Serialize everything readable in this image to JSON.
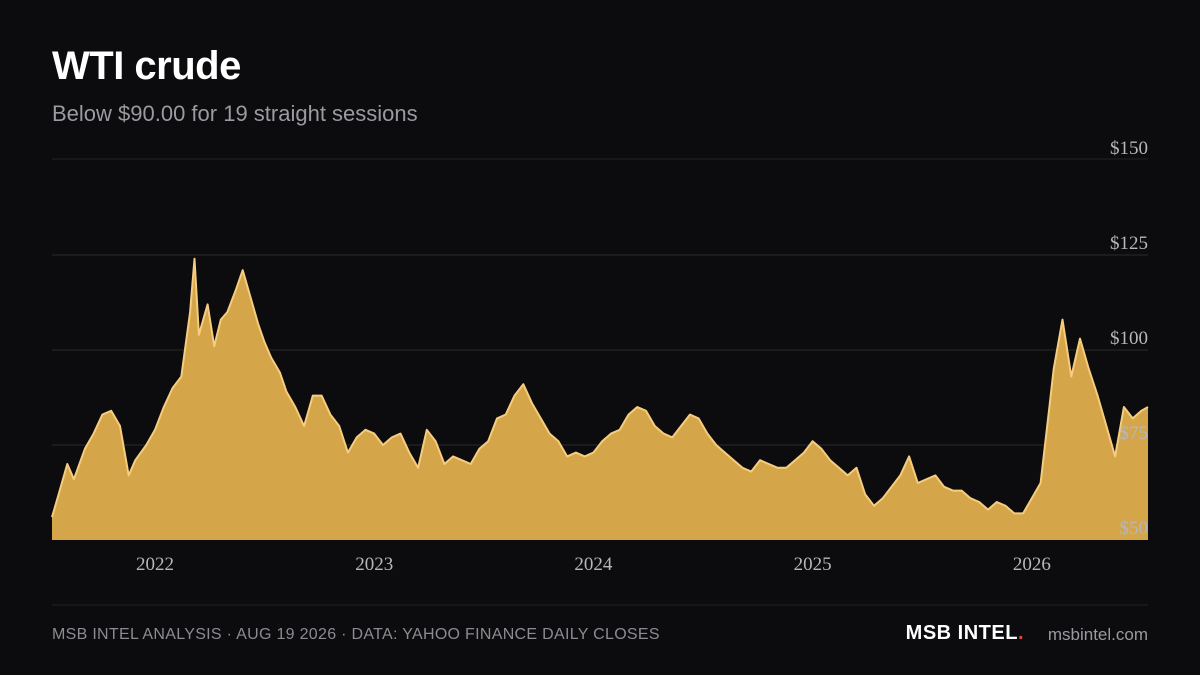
{
  "header": {
    "title": "WTI crude",
    "subtitle": "Below $90.00 for 19 straight sessions"
  },
  "footer": {
    "source_note": "MSB INTEL ANALYSIS · AUG 19 2026 · DATA: YAHOO FINANCE DAILY CLOSES",
    "brand": "MSB INTEL",
    "brand_dot": ".",
    "url": "msbintel.com"
  },
  "colors": {
    "background": "#0c0c0e",
    "area_fill": "#d5a54a",
    "line": "#f6cd7e",
    "grid": "#2a2a2e",
    "brand_dot": "#e0443c"
  },
  "chart_data": {
    "type": "area",
    "title": "WTI crude",
    "subtitle": "Below $90.00 for 19 straight sessions",
    "xlabel": "",
    "ylabel": "",
    "xlim": [
      2021.53,
      2026.53
    ],
    "ylim": [
      50,
      150
    ],
    "y_ticks": [
      50,
      75,
      100,
      125,
      150
    ],
    "y_tick_labels": [
      "$50",
      "$75",
      "$100",
      "$125",
      "$150"
    ],
    "x_ticks": [
      2022,
      2023,
      2024,
      2025,
      2026
    ],
    "x_tick_labels": [
      "2022",
      "2023",
      "2024",
      "2025",
      "2026"
    ],
    "grid": true,
    "series": [
      {
        "values": [
          [
            2021.53,
            56
          ],
          [
            2021.56,
            62
          ],
          [
            2021.6,
            70
          ],
          [
            2021.63,
            66
          ],
          [
            2021.68,
            74
          ],
          [
            2021.72,
            78
          ],
          [
            2021.76,
            83
          ],
          [
            2021.8,
            84
          ],
          [
            2021.84,
            80
          ],
          [
            2021.88,
            67
          ],
          [
            2021.91,
            71
          ],
          [
            2021.96,
            75
          ],
          [
            2022.0,
            79
          ],
          [
            2022.04,
            85
          ],
          [
            2022.08,
            90
          ],
          [
            2022.12,
            93
          ],
          [
            2022.16,
            110
          ],
          [
            2022.18,
            124
          ],
          [
            2022.2,
            104
          ],
          [
            2022.24,
            112
          ],
          [
            2022.27,
            101
          ],
          [
            2022.3,
            108
          ],
          [
            2022.33,
            110
          ],
          [
            2022.37,
            116
          ],
          [
            2022.4,
            121
          ],
          [
            2022.44,
            113
          ],
          [
            2022.47,
            107
          ],
          [
            2022.5,
            102
          ],
          [
            2022.53,
            98
          ],
          [
            2022.57,
            94
          ],
          [
            2022.6,
            89
          ],
          [
            2022.64,
            85
          ],
          [
            2022.68,
            80
          ],
          [
            2022.72,
            88
          ],
          [
            2022.76,
            88
          ],
          [
            2022.8,
            83
          ],
          [
            2022.84,
            80
          ],
          [
            2022.88,
            73
          ],
          [
            2022.92,
            77
          ],
          [
            2022.96,
            79
          ],
          [
            2023.0,
            78
          ],
          [
            2023.04,
            75
          ],
          [
            2023.08,
            77
          ],
          [
            2023.12,
            78
          ],
          [
            2023.16,
            73
          ],
          [
            2023.2,
            69
          ],
          [
            2023.24,
            79
          ],
          [
            2023.28,
            76
          ],
          [
            2023.32,
            70
          ],
          [
            2023.36,
            72
          ],
          [
            2023.4,
            71
          ],
          [
            2023.44,
            70
          ],
          [
            2023.48,
            74
          ],
          [
            2023.52,
            76
          ],
          [
            2023.56,
            82
          ],
          [
            2023.6,
            83
          ],
          [
            2023.64,
            88
          ],
          [
            2023.68,
            91
          ],
          [
            2023.72,
            86
          ],
          [
            2023.76,
            82
          ],
          [
            2023.8,
            78
          ],
          [
            2023.84,
            76
          ],
          [
            2023.88,
            72
          ],
          [
            2023.92,
            73
          ],
          [
            2023.96,
            72
          ],
          [
            2024.0,
            73
          ],
          [
            2024.04,
            76
          ],
          [
            2024.08,
            78
          ],
          [
            2024.12,
            79
          ],
          [
            2024.16,
            83
          ],
          [
            2024.2,
            85
          ],
          [
            2024.24,
            84
          ],
          [
            2024.28,
            80
          ],
          [
            2024.32,
            78
          ],
          [
            2024.36,
            77
          ],
          [
            2024.4,
            80
          ],
          [
            2024.44,
            83
          ],
          [
            2024.48,
            82
          ],
          [
            2024.52,
            78
          ],
          [
            2024.56,
            75
          ],
          [
            2024.6,
            73
          ],
          [
            2024.64,
            71
          ],
          [
            2024.68,
            69
          ],
          [
            2024.72,
            68
          ],
          [
            2024.76,
            71
          ],
          [
            2024.8,
            70
          ],
          [
            2024.84,
            69
          ],
          [
            2024.88,
            69
          ],
          [
            2024.92,
            71
          ],
          [
            2024.96,
            73
          ],
          [
            2025.0,
            76
          ],
          [
            2025.04,
            74
          ],
          [
            2025.08,
            71
          ],
          [
            2025.12,
            69
          ],
          [
            2025.16,
            67
          ],
          [
            2025.2,
            69
          ],
          [
            2025.24,
            62
          ],
          [
            2025.28,
            59
          ],
          [
            2025.32,
            61
          ],
          [
            2025.36,
            64
          ],
          [
            2025.4,
            67
          ],
          [
            2025.44,
            72
          ],
          [
            2025.48,
            65
          ],
          [
            2025.52,
            66
          ],
          [
            2025.56,
            67
          ],
          [
            2025.6,
            64
          ],
          [
            2025.64,
            63
          ],
          [
            2025.68,
            63
          ],
          [
            2025.72,
            61
          ],
          [
            2025.76,
            60
          ],
          [
            2025.8,
            58
          ],
          [
            2025.84,
            60
          ],
          [
            2025.88,
            59
          ],
          [
            2025.92,
            57
          ],
          [
            2025.96,
            57
          ],
          [
            2026.0,
            61
          ],
          [
            2026.04,
            65
          ],
          [
            2026.08,
            85
          ],
          [
            2026.1,
            95
          ],
          [
            2026.14,
            108
          ],
          [
            2026.18,
            93
          ],
          [
            2026.22,
            103
          ],
          [
            2026.26,
            95
          ],
          [
            2026.3,
            88
          ],
          [
            2026.34,
            80
          ],
          [
            2026.38,
            72
          ],
          [
            2026.42,
            85
          ],
          [
            2026.46,
            82
          ],
          [
            2026.5,
            84
          ],
          [
            2026.53,
            85
          ]
        ]
      }
    ]
  }
}
